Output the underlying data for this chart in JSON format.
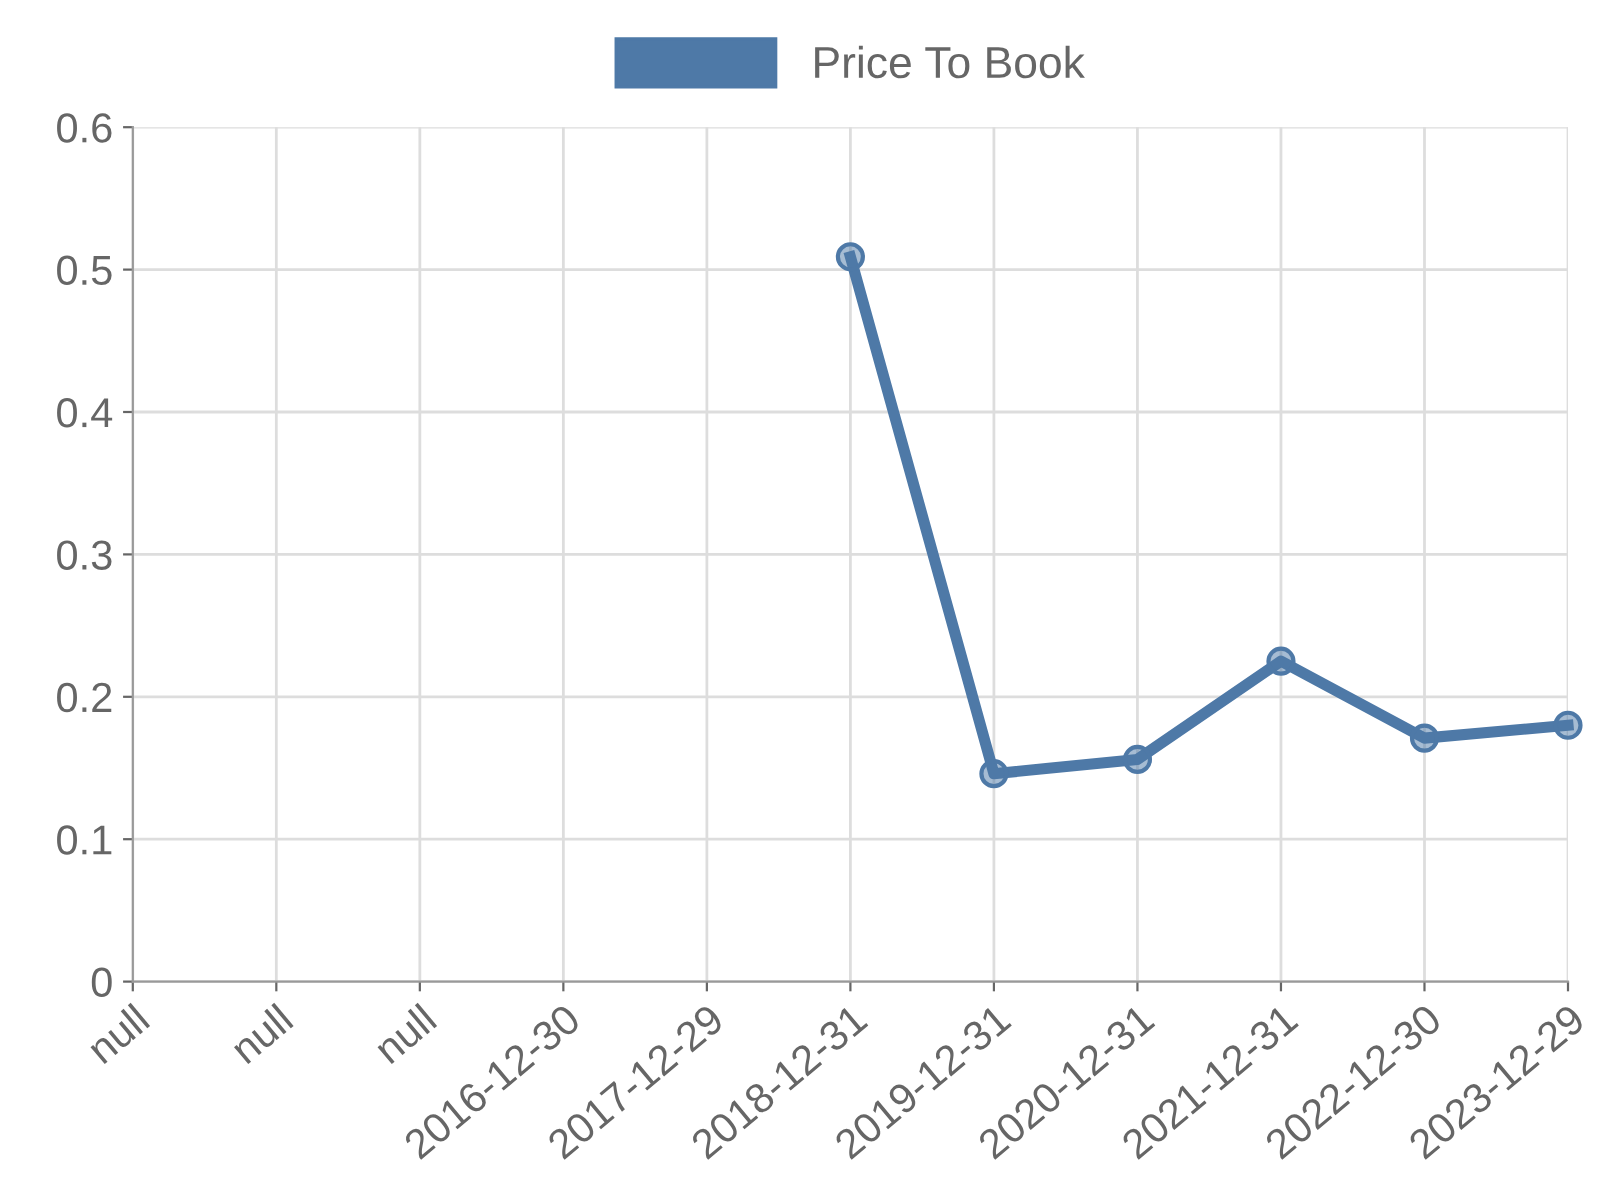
{
  "chart_data": {
    "type": "line",
    "categories": [
      "null",
      "null",
      "null",
      "2016-12-30",
      "2017-12-29",
      "2018-12-31",
      "2019-12-31",
      "2020-12-31",
      "2021-12-31",
      "2022-12-30",
      "2023-12-29"
    ],
    "series": [
      {
        "name": "Price To Book",
        "color": "#4e79a7",
        "values": [
          null,
          null,
          null,
          null,
          null,
          0.509,
          0.146,
          0.156,
          0.225,
          0.171,
          0.18
        ]
      }
    ],
    "ylim": [
      0,
      0.6
    ],
    "yticks": [
      0,
      0.1,
      0.2,
      0.3,
      0.4,
      0.5,
      0.6
    ],
    "grid": true,
    "legend": "top",
    "marker": "circle",
    "line_style": "solid"
  }
}
